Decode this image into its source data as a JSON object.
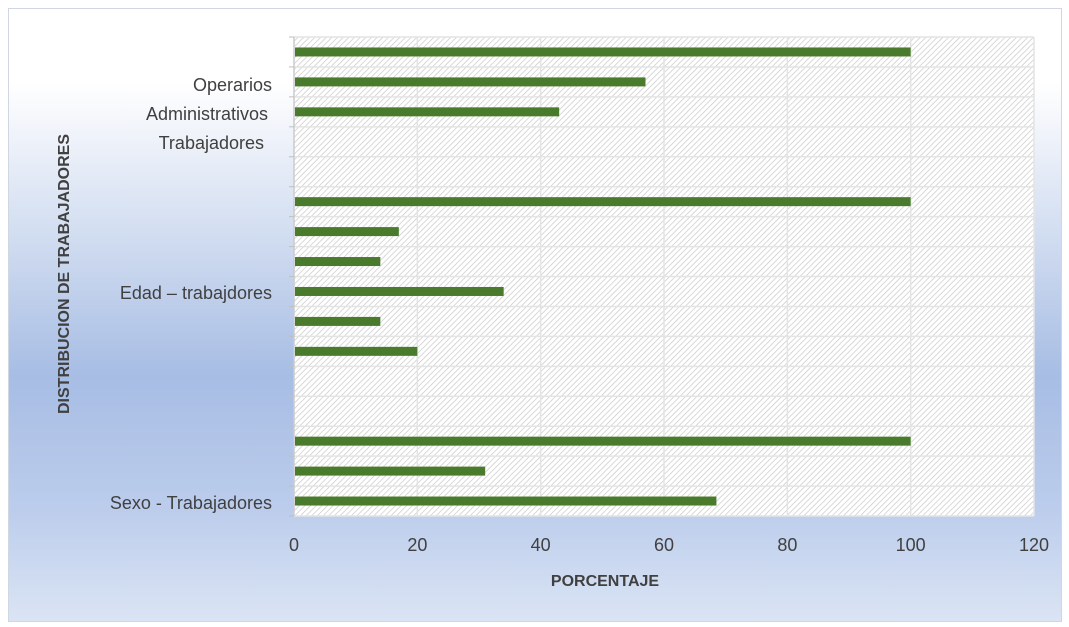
{
  "chart_data": {
    "type": "bar",
    "orientation": "horizontal",
    "title": "",
    "xlabel": "PORCENTAJE",
    "ylabel": "DISTRIBUCION DE TRABAJADORES",
    "xlim": [
      0,
      120
    ],
    "xticks": [
      "0",
      "20",
      "40",
      "60",
      "80",
      "100",
      "120"
    ],
    "grid": true,
    "bar_color": "#4a7a2c",
    "plot_background": "hatched",
    "category_labels": [
      "Operarios",
      "Administrativos",
      "Trabajadores",
      "Edad – trabajdores",
      "Sexo - Trabajadores"
    ],
    "values": [
      100,
      57,
      43,
      null,
      null,
      100,
      17,
      14,
      34,
      14,
      20,
      null,
      null,
      100,
      31,
      68.5
    ]
  }
}
